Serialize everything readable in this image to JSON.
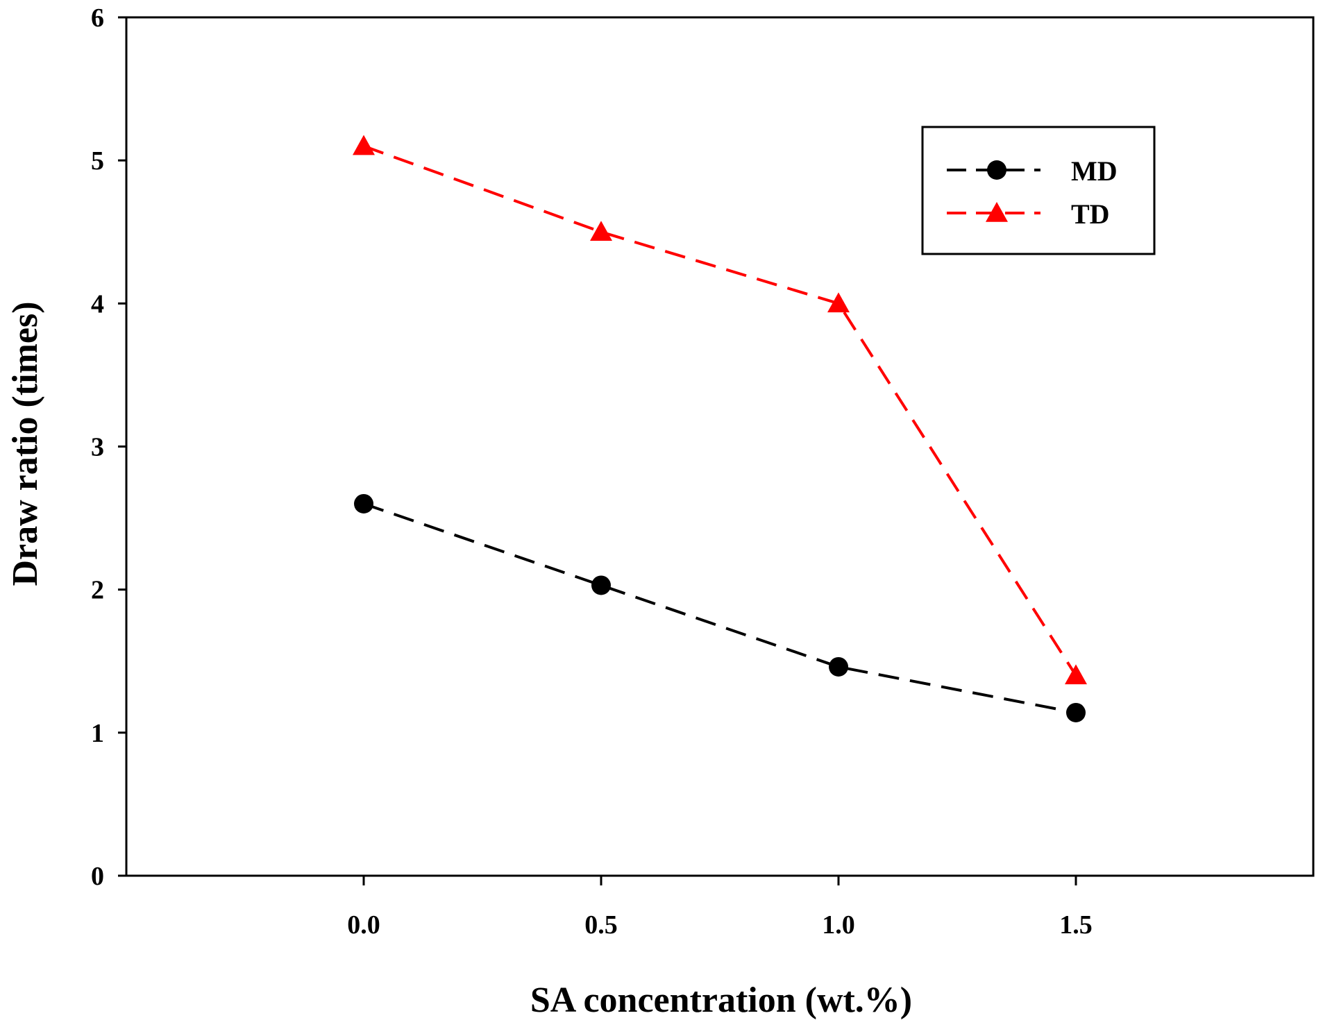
{
  "chart_data": {
    "type": "line",
    "title": "",
    "xlabel": "SA concentration (wt.%)",
    "ylabel": "Draw ratio (times)",
    "xlim": [
      -0.5,
      2.0
    ],
    "ylim": [
      0,
      6
    ],
    "x_ticks": [
      0.0,
      0.5,
      1.0,
      1.5
    ],
    "x_tick_labels": [
      "0.0",
      "0.5",
      "1.0",
      "1.5"
    ],
    "y_ticks": [
      0,
      1,
      2,
      3,
      4,
      5,
      6
    ],
    "y_tick_labels": [
      "0",
      "1",
      "2",
      "3",
      "4",
      "5",
      "6"
    ],
    "grid": false,
    "legend_position": "top-right",
    "series": [
      {
        "name": "MD",
        "color": "#000000",
        "marker": "circle",
        "line_style": "dashed",
        "x": [
          0.0,
          0.5,
          1.0,
          1.5
        ],
        "values": [
          2.6,
          2.03,
          1.46,
          1.14
        ]
      },
      {
        "name": "TD",
        "color": "#ff0000",
        "marker": "triangle",
        "line_style": "dashed",
        "x": [
          0.0,
          0.5,
          1.0,
          1.5
        ],
        "values": [
          5.1,
          4.5,
          4.0,
          1.4
        ]
      }
    ]
  }
}
